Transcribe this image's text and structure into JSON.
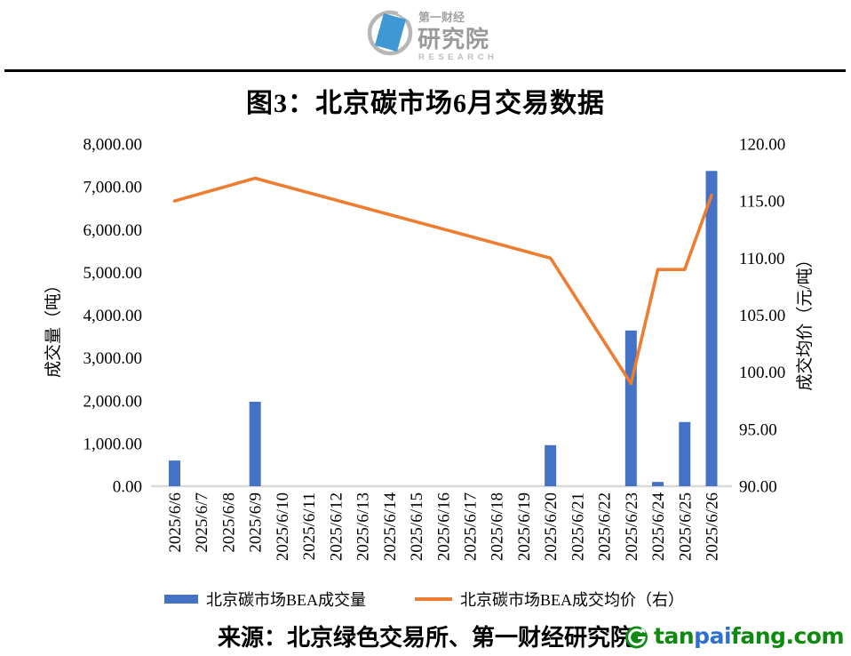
{
  "header": {
    "logo": {
      "brand_top": "第一财经",
      "brand_main": "研究院",
      "brand_sub": "RESEARCH"
    }
  },
  "figure": {
    "title": "图3：北京碳市场6月交易数据"
  },
  "chart_data": {
    "type": "bar",
    "subtype": "combo-bar-line-dual-axis",
    "title": "图3：北京碳市场6月交易数据",
    "categories": [
      "2025/6/6",
      "2025/6/7",
      "2025/6/8",
      "2025/6/9",
      "2025/6/10",
      "2025/6/11",
      "2025/6/12",
      "2025/6/13",
      "2025/6/14",
      "2025/6/15",
      "2025/6/16",
      "2025/6/17",
      "2025/6/18",
      "2025/6/19",
      "2025/6/20",
      "2025/6/21",
      "2025/6/22",
      "2025/6/23",
      "2025/6/24",
      "2025/6/25",
      "2025/6/26"
    ],
    "series": [
      {
        "name": "北京碳市场BEA成交量",
        "type": "bar",
        "axis": "left",
        "color": "#4472C4",
        "values": [
          600,
          null,
          null,
          1975,
          null,
          null,
          null,
          null,
          null,
          null,
          null,
          null,
          null,
          null,
          960,
          null,
          null,
          3640,
          100,
          1500,
          7370
        ]
      },
      {
        "name": "北京碳市场BEA成交均价（右）",
        "type": "line",
        "axis": "right",
        "color": "#ED7D31",
        "values": [
          115,
          null,
          null,
          117,
          null,
          null,
          null,
          null,
          null,
          null,
          null,
          null,
          null,
          null,
          110,
          null,
          null,
          99,
          109,
          109,
          115.5
        ]
      }
    ],
    "left_axis": {
      "title": "成交量（吨）",
      "min": 0,
      "max": 8000,
      "ticks": [
        "0.00",
        "1,000.00",
        "2,000.00",
        "3,000.00",
        "4,000.00",
        "5,000.00",
        "6,000.00",
        "7,000.00",
        "8,000.00"
      ]
    },
    "right_axis": {
      "title": "成交均价（元/吨）",
      "min": 90,
      "max": 120,
      "ticks": [
        "90.00",
        "95.00",
        "100.00",
        "105.00",
        "110.00",
        "115.00",
        "120.00"
      ]
    },
    "grid": false,
    "legend_position": "bottom",
    "axis_line_color": "#d9d9d9"
  },
  "footer": {
    "source": "来源：北京绿色交易所、第一财经研究院",
    "watermark": {
      "parts": [
        {
          "text": "tan",
          "color": "#0e8a0e"
        },
        {
          "text": "pai",
          "color": "#2f6fd2"
        },
        {
          "text": "fang.com",
          "color": "#0e8a0e"
        }
      ]
    }
  }
}
